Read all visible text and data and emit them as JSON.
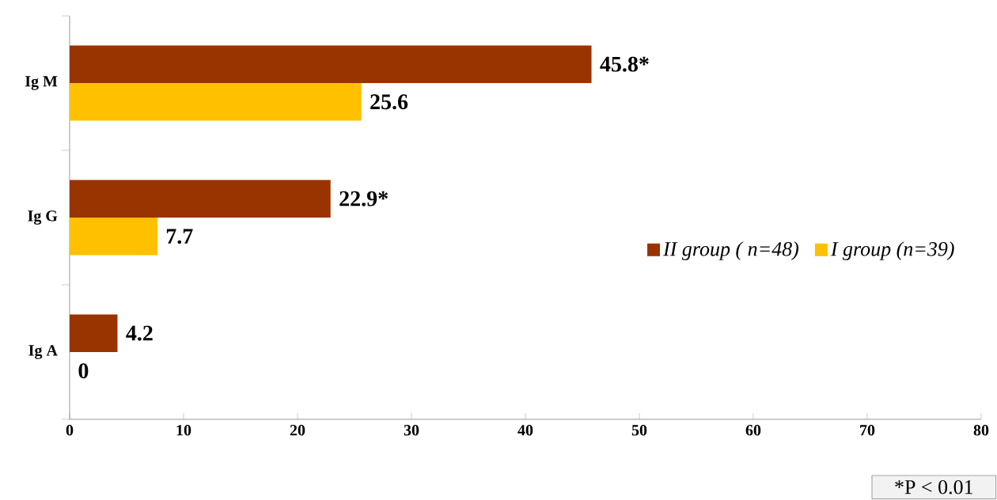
{
  "chart_data": {
    "type": "bar",
    "orientation": "horizontal",
    "categories": [
      "Ig M",
      "Ig G",
      "Ig A"
    ],
    "series": [
      {
        "name": "II group ( n=48)",
        "color": "#993300",
        "values": [
          45.8,
          22.9,
          4.2
        ],
        "value_labels": [
          "45.8*",
          "22.9*",
          "4.2"
        ]
      },
      {
        "name": "I group (n=39)",
        "color": "#ffc000",
        "values": [
          25.6,
          7.7,
          0
        ],
        "value_labels": [
          "25.6",
          "7.7",
          "0"
        ]
      }
    ],
    "xlim": [
      0,
      80
    ],
    "xticks": [
      0,
      10,
      20,
      30,
      40,
      50,
      60,
      70,
      80
    ],
    "legend": "right",
    "annotations": [
      "*P < 0.01"
    ]
  }
}
